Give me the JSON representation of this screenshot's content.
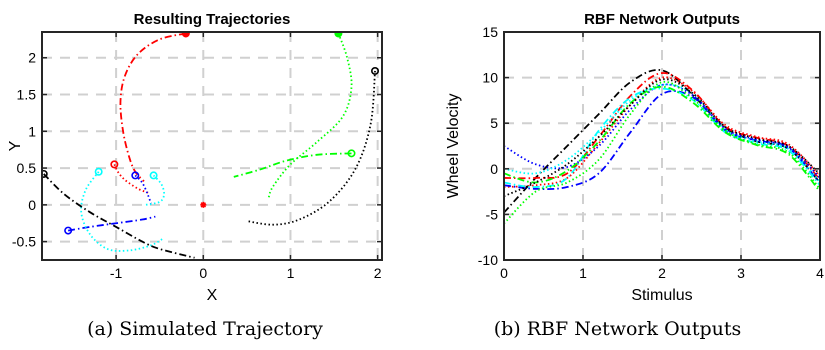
{
  "chart_data": [
    {
      "type": "line",
      "title": "Resulting Trajectories",
      "xlabel": "X",
      "ylabel": "Y",
      "xlim": [
        -1.85,
        2.05
      ],
      "ylim": [
        -0.75,
        2.35
      ],
      "xticks": [
        -1,
        0,
        1,
        2
      ],
      "yticks": [
        -0.5,
        0,
        0.5,
        1,
        1.5,
        2
      ],
      "tick_labels_x": [
        "-1",
        "0",
        "1",
        "2"
      ],
      "tick_labels_y": [
        "-0.5",
        "0",
        "0.5",
        "1",
        "1.5",
        "2"
      ],
      "grid": true,
      "target": {
        "x": 0.0,
        "y": 0.0,
        "color": "#ff0000"
      },
      "series": [
        {
          "color": "#ff0000",
          "style": "dashdot",
          "start_marker": "filled",
          "points": [
            [
              -0.2,
              2.33
            ],
            [
              -0.5,
              2.25
            ],
            [
              -0.75,
              2.05
            ],
            [
              -0.9,
              1.75
            ],
            [
              -0.95,
              1.4
            ],
            [
              -0.92,
              1.0
            ],
            [
              -0.85,
              0.65
            ],
            [
              -0.78,
              0.45
            ],
            [
              -0.68,
              0.32
            ]
          ]
        },
        {
          "color": "#ff0000",
          "style": "dotted",
          "start_marker": "open",
          "points": [
            [
              -1.02,
              0.55
            ],
            [
              -0.98,
              0.45
            ],
            [
              -0.9,
              0.34
            ],
            [
              -0.75,
              0.22
            ],
            [
              -0.62,
              0.16
            ]
          ]
        },
        {
          "color": "#0000ff",
          "style": "dotted",
          "start_marker": "open",
          "points": [
            [
              -0.78,
              0.4
            ],
            [
              -0.7,
              0.3
            ],
            [
              -0.64,
              0.15
            ],
            [
              -0.6,
              0.02
            ]
          ]
        },
        {
          "color": "#0000ff",
          "style": "dashdot",
          "start_marker": "open",
          "points": [
            [
              -1.55,
              -0.35
            ],
            [
              -1.3,
              -0.3
            ],
            [
              -1.0,
              -0.25
            ],
            [
              -0.7,
              -0.2
            ],
            [
              -0.55,
              -0.16
            ]
          ]
        },
        {
          "color": "#00ffff",
          "style": "dotted",
          "start_marker": "open",
          "points": [
            [
              -1.2,
              0.45
            ],
            [
              -1.35,
              0.2
            ],
            [
              -1.4,
              -0.1
            ],
            [
              -1.3,
              -0.4
            ],
            [
              -1.1,
              -0.6
            ],
            [
              -0.85,
              -0.62
            ],
            [
              -0.6,
              -0.55
            ],
            [
              -0.45,
              -0.45
            ]
          ]
        },
        {
          "color": "#00ffff",
          "style": "dotted",
          "start_marker": "open",
          "points": [
            [
              -0.57,
              0.4
            ],
            [
              -0.48,
              0.28
            ],
            [
              -0.45,
              0.14
            ],
            [
              -0.5,
              0.04
            ],
            [
              -0.66,
              0.0
            ]
          ]
        },
        {
          "color": "#000000",
          "style": "dashdot",
          "start_marker": "open",
          "points": [
            [
              -1.83,
              0.42
            ],
            [
              -1.6,
              0.15
            ],
            [
              -1.3,
              -0.1
            ],
            [
              -1.0,
              -0.3
            ],
            [
              -0.7,
              -0.5
            ],
            [
              -0.5,
              -0.6
            ],
            [
              -0.1,
              -0.72
            ]
          ]
        },
        {
          "color": "#000000",
          "style": "dotted",
          "start_marker": "open",
          "points": [
            [
              1.97,
              1.82
            ],
            [
              1.92,
              1.1
            ],
            [
              1.75,
              0.5
            ],
            [
              1.45,
              0.05
            ],
            [
              1.1,
              -0.2
            ],
            [
              0.8,
              -0.27
            ],
            [
              0.5,
              -0.22
            ]
          ]
        },
        {
          "color": "#00ff00",
          "style": "dotted",
          "start_marker": "filled",
          "points": [
            [
              1.55,
              2.33
            ],
            [
              1.65,
              2.0
            ],
            [
              1.7,
              1.6
            ],
            [
              1.6,
              1.2
            ],
            [
              1.3,
              0.85
            ],
            [
              1.0,
              0.55
            ],
            [
              0.8,
              0.25
            ],
            [
              0.75,
              0.1
            ]
          ]
        },
        {
          "color": "#00ff00",
          "style": "dashdot",
          "start_marker": "open",
          "points": [
            [
              1.7,
              0.7
            ],
            [
              1.3,
              0.68
            ],
            [
              0.95,
              0.6
            ],
            [
              0.65,
              0.48
            ],
            [
              0.35,
              0.38
            ]
          ]
        }
      ]
    },
    {
      "type": "line",
      "title": "RBF Network Outputs",
      "xlabel": "Stimulus",
      "ylabel": "Wheel Velocity",
      "xlim": [
        0,
        4
      ],
      "ylim": [
        -10,
        15
      ],
      "xticks": [
        0,
        1,
        2,
        3,
        4
      ],
      "yticks": [
        -10,
        -5,
        0,
        5,
        10,
        15
      ],
      "tick_labels_x": [
        "0",
        "1",
        "2",
        "3",
        "4"
      ],
      "tick_labels_y": [
        "-10",
        "-5",
        "0",
        "5",
        "10",
        "15"
      ],
      "grid": true,
      "x": [
        0,
        0.4,
        0.8,
        1.2,
        1.6,
        2.0,
        2.4,
        2.8,
        3.2,
        3.6,
        4.0
      ],
      "series": [
        {
          "color": "#000000",
          "style": "dashdot",
          "values": [
            -4.8,
            -1.0,
            2.5,
            6.0,
            9.5,
            10.8,
            8.0,
            4.5,
            3.0,
            2.2,
            -1.5
          ]
        },
        {
          "color": "#ff0000",
          "style": "dashdot",
          "values": [
            -1.0,
            -1.0,
            -0.5,
            3.5,
            8.0,
            10.5,
            8.5,
            4.6,
            3.4,
            2.5,
            -1.2
          ]
        },
        {
          "color": "#ff0000",
          "style": "dotted",
          "values": [
            -2.0,
            -1.8,
            -1.0,
            2.8,
            7.0,
            10.0,
            8.4,
            4.8,
            3.5,
            2.7,
            -0.8
          ]
        },
        {
          "color": "#0000ff",
          "style": "dotted",
          "values": [
            2.5,
            0.5,
            0.2,
            2.5,
            6.5,
            9.2,
            8.0,
            4.4,
            3.2,
            2.4,
            -1.0
          ]
        },
        {
          "color": "#0000ff",
          "style": "dashdot",
          "values": [
            -1.8,
            -2.2,
            -2.0,
            -0.5,
            4.0,
            8.2,
            7.8,
            4.2,
            3.1,
            2.3,
            -1.6
          ]
        },
        {
          "color": "#00ffff",
          "style": "dotted",
          "values": [
            0.0,
            -0.5,
            1.0,
            4.0,
            7.5,
            9.2,
            8.2,
            4.3,
            3.0,
            2.2,
            -1.4
          ]
        },
        {
          "color": "#00ffff",
          "style": "dashdot",
          "values": [
            -1.5,
            -2.0,
            -1.0,
            4.2,
            7.8,
            8.8,
            7.5,
            4.0,
            2.8,
            2.0,
            -1.8
          ]
        },
        {
          "color": "#00ff00",
          "style": "dotted",
          "values": [
            -6.0,
            -2.5,
            -1.5,
            1.0,
            6.0,
            9.5,
            7.6,
            4.2,
            2.7,
            1.8,
            -2.2
          ]
        },
        {
          "color": "#00ff00",
          "style": "dashdot",
          "values": [
            -0.5,
            -1.5,
            -0.2,
            3.0,
            7.2,
            9.0,
            7.2,
            4.0,
            2.6,
            1.6,
            -2.5
          ]
        },
        {
          "color": "#000000",
          "style": "dotted",
          "values": [
            -3.0,
            -1.5,
            0.5,
            3.5,
            7.0,
            9.8,
            8.2,
            4.6,
            3.3,
            2.5,
            -0.6
          ]
        }
      ]
    }
  ],
  "captions": {
    "a": "(a) Simulated Trajectory",
    "b": "(b) RBF Network Outputs"
  }
}
